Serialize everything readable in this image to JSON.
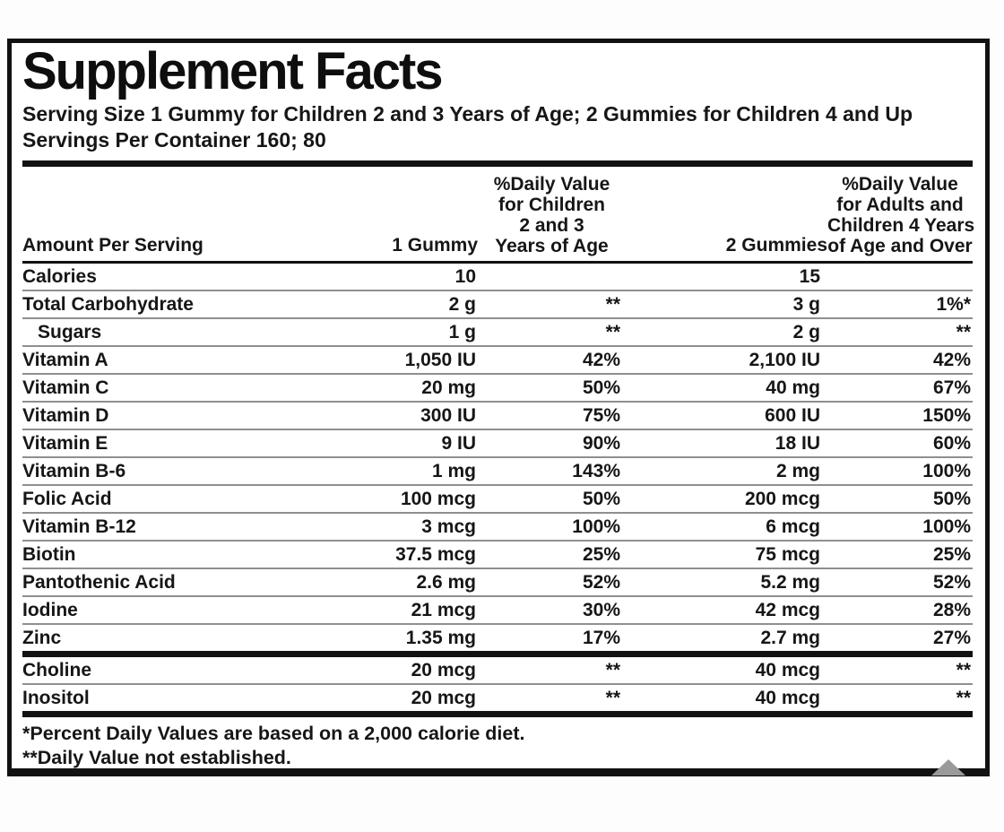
{
  "label": {
    "title": "Supplement Facts",
    "serving_size": "Serving Size 1 Gummy for Children 2 and 3 Years of Age; 2 Gummies for Children 4 and Up",
    "servings_per_container": "Servings Per Container 160; 80"
  },
  "table": {
    "header": {
      "amount_per_serving": "Amount Per Serving",
      "gummy1": "1 Gummy",
      "dv_children_lines": [
        "%Daily Value",
        "for Children",
        "2 and 3",
        "Years of Age"
      ],
      "gummies2": "2 Gummies",
      "dv_adults_lines": [
        "%Daily Value",
        "for Adults and",
        "Children 4 Years",
        "of Age and Over"
      ]
    },
    "rows": [
      {
        "name": "Calories",
        "g1": "10",
        "dv1": "",
        "g2": "15",
        "dv2": "",
        "indent": false,
        "thick_before": false
      },
      {
        "name": "Total Carbohydrate",
        "g1": "2 g",
        "dv1": "**",
        "g2": "3 g",
        "dv2": "1%*",
        "indent": false,
        "thick_before": false
      },
      {
        "name": "Sugars",
        "g1": "1 g",
        "dv1": "**",
        "g2": "2 g",
        "dv2": "**",
        "indent": true,
        "thick_before": false
      },
      {
        "name": "Vitamin A",
        "g1": "1,050 IU",
        "dv1": "42%",
        "g2": "2,100 IU",
        "dv2": "42%",
        "indent": false,
        "thick_before": false
      },
      {
        "name": "Vitamin C",
        "g1": "20 mg",
        "dv1": "50%",
        "g2": "40 mg",
        "dv2": "67%",
        "indent": false,
        "thick_before": false
      },
      {
        "name": "Vitamin D",
        "g1": "300 IU",
        "dv1": "75%",
        "g2": "600 IU",
        "dv2": "150%",
        "indent": false,
        "thick_before": false
      },
      {
        "name": "Vitamin E",
        "g1": "9 IU",
        "dv1": "90%",
        "g2": "18 IU",
        "dv2": "60%",
        "indent": false,
        "thick_before": false
      },
      {
        "name": "Vitamin B-6",
        "g1": "1 mg",
        "dv1": "143%",
        "g2": "2 mg",
        "dv2": "100%",
        "indent": false,
        "thick_before": false
      },
      {
        "name": "Folic Acid",
        "g1": "100 mcg",
        "dv1": "50%",
        "g2": "200 mcg",
        "dv2": "50%",
        "indent": false,
        "thick_before": false
      },
      {
        "name": "Vitamin B-12",
        "g1": "3 mcg",
        "dv1": "100%",
        "g2": "6 mcg",
        "dv2": "100%",
        "indent": false,
        "thick_before": false
      },
      {
        "name": "Biotin",
        "g1": "37.5 mcg",
        "dv1": "25%",
        "g2": "75 mcg",
        "dv2": "25%",
        "indent": false,
        "thick_before": false
      },
      {
        "name": "Pantothenic Acid",
        "g1": "2.6 mg",
        "dv1": "52%",
        "g2": "5.2 mg",
        "dv2": "52%",
        "indent": false,
        "thick_before": false
      },
      {
        "name": "Iodine",
        "g1": "21 mcg",
        "dv1": "30%",
        "g2": "42 mcg",
        "dv2": "28%",
        "indent": false,
        "thick_before": false
      },
      {
        "name": "Zinc",
        "g1": "1.35 mg",
        "dv1": "17%",
        "g2": "2.7 mg",
        "dv2": "27%",
        "indent": false,
        "thick_before": false
      },
      {
        "name": "Choline",
        "g1": "20 mcg",
        "dv1": "**",
        "g2": "40 mcg",
        "dv2": "**",
        "indent": false,
        "thick_before": true
      },
      {
        "name": "Inositol",
        "g1": "20 mcg",
        "dv1": "**",
        "g2": "40 mcg",
        "dv2": "**",
        "indent": false,
        "thick_before": false
      }
    ],
    "footnotes": [
      "*Percent Daily Values are based on a 2,000 calorie diet.",
      "**Daily Value not established."
    ]
  },
  "colors": {
    "background": "#ffffff",
    "text": "#161616",
    "frame": "#121212",
    "separator": "#8f8f8f",
    "triangle_artifact": "#9a9a9a"
  }
}
